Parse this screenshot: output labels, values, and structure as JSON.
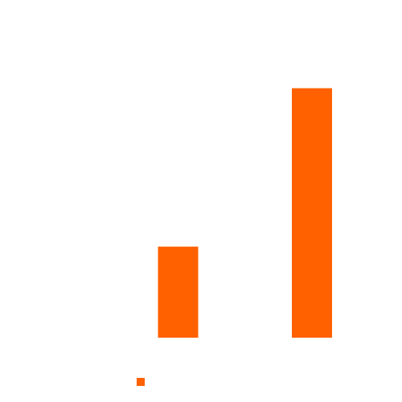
{
  "chart_data": {
    "type": "bar",
    "categories": [
      "",
      ""
    ],
    "series": [
      {
        "values": [
          23,
          63
        ],
        "color": "#ff6100"
      }
    ],
    "title": "",
    "xlabel": "",
    "ylabel": "",
    "ylim": [
      0,
      80
    ],
    "grid": false,
    "legend": "bottom"
  }
}
